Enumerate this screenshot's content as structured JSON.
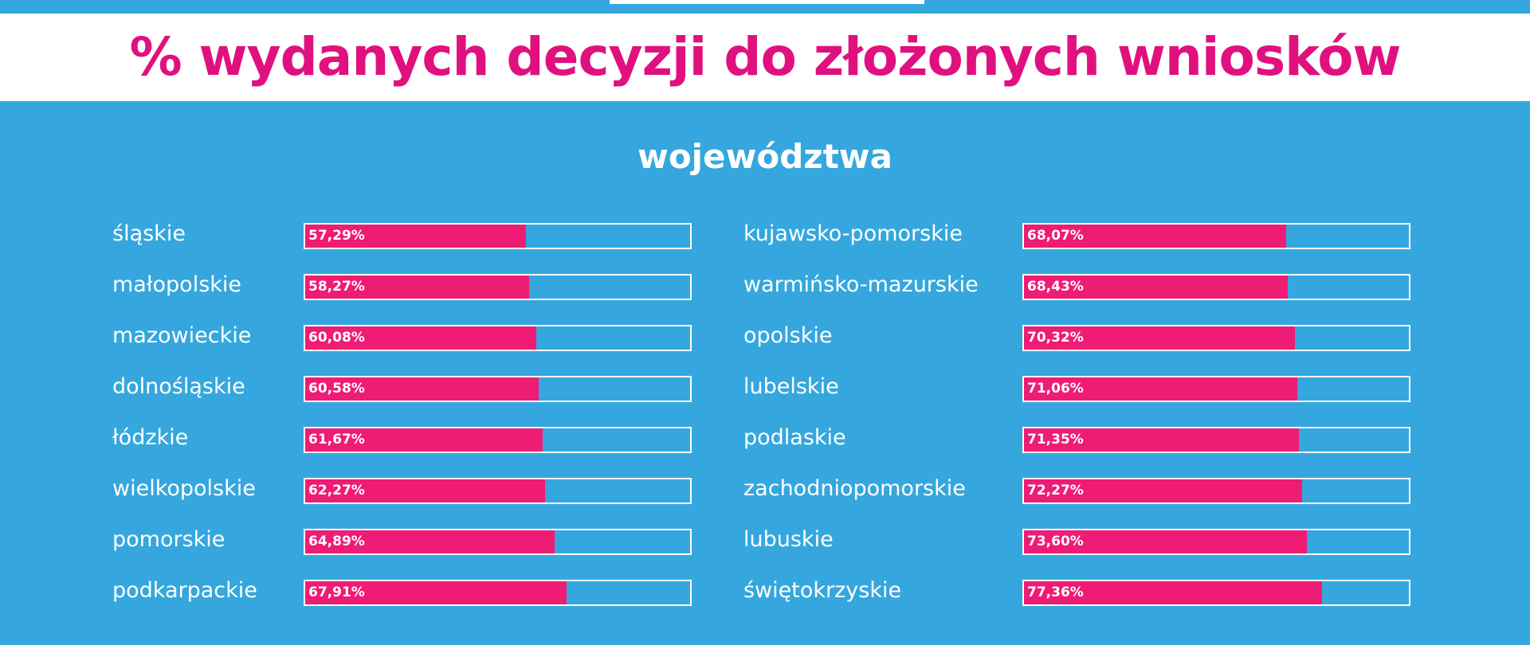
{
  "header": {
    "title": "% wydanych decyzji do złożonych wniosków"
  },
  "colors": {
    "background": "#35a7de",
    "bar_fill": "#ee1c74",
    "title": "#e0117f",
    "bar_border": "#ffffff"
  },
  "chart_data": {
    "type": "bar",
    "orientation": "horizontal",
    "title": "% wydanych decyzji do złożonych wniosków",
    "subtitle": "województwa",
    "xlim": [
      0,
      100
    ],
    "columns": [
      {
        "categories": [
          "śląskie",
          "małopolskie",
          "mazowieckie",
          "dolnośląskie",
          "łódzkie",
          "wielkopolskie",
          "pomorskie",
          "podkarpackie"
        ],
        "values": [
          57.29,
          58.27,
          60.08,
          60.58,
          61.67,
          62.27,
          64.89,
          67.91
        ],
        "labels": [
          "57,29%",
          "58,27%",
          "60,08%",
          "60,58%",
          "61,67%",
          "62,27%",
          "64,89%",
          "67,91%"
        ]
      },
      {
        "categories": [
          "kujawsko-pomorskie",
          "warmińsko-mazurskie",
          "opolskie",
          "lubelskie",
          "podlaskie",
          "zachodniopomorskie",
          "lubuskie",
          "świętokrzyskie"
        ],
        "values": [
          68.07,
          68.43,
          70.32,
          71.06,
          71.35,
          72.27,
          73.6,
          77.36
        ],
        "labels": [
          "68,07%",
          "68,43%",
          "70,32%",
          "71,06%",
          "71,35%",
          "72,27%",
          "73,60%",
          "77,36%"
        ]
      }
    ]
  }
}
